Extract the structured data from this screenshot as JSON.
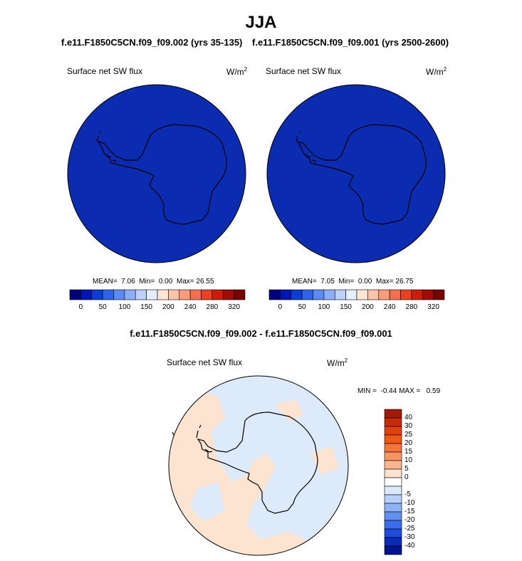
{
  "main_title": "JJA",
  "panels": [
    {
      "run_title": "f.e11.F1850C5CN.f09_f09.002 (yrs 35-135)",
      "variable": "Surface net SW flux",
      "unit_base": "W/m",
      "unit_exp": "2",
      "mean_label": "MEAN=",
      "mean": "7.06",
      "min_label": "Min=",
      "min": "0.00",
      "max_label": "Max=",
      "max": "26.55"
    },
    {
      "run_title": "f.e11.F1850C5CN.f09_f09.001 (yrs 2500-2600)",
      "variable": "Surface net SW flux",
      "unit_base": "W/m",
      "unit_exp": "2",
      "mean_label": "MEAN=",
      "mean": "7.05",
      "min_label": "Min=",
      "min": "0.00",
      "max_label": "Max=",
      "max": "26.75"
    }
  ],
  "colorbar": {
    "colors": [
      "#00007f",
      "#0016b4",
      "#0a3ed6",
      "#2e63ee",
      "#5b89f6",
      "#8cadfa",
      "#bcd2fc",
      "#e4eefd",
      "#fde6d6",
      "#fcc3a7",
      "#fb9c7a",
      "#f66f4c",
      "#ea4121",
      "#cd1d0a",
      "#a40a04",
      "#7a0000"
    ],
    "ticks": [
      "0",
      "50",
      "100",
      "150",
      "200",
      "240",
      "280",
      "320"
    ]
  },
  "diff": {
    "title": "f.e11.F1850C5CN.f09_f09.002 - f.e11.F1850C5CN.f09_f09.001",
    "variable": "Surface net SW flux",
    "unit_base": "W/m",
    "unit_exp": "2",
    "minmax_text": "MIN =  -0.44 MAX =   0.59",
    "colors_top_to_bottom": [
      "#a41a0a",
      "#c62a0c",
      "#e1400f",
      "#f2571a",
      "#f6733a",
      "#f89362",
      "#fbb68f",
      "#fde3cf",
      "#ffffff",
      "#dbe9fb",
      "#b7d0f8",
      "#8fb2f4",
      "#6290ef",
      "#3a6cec",
      "#1e4adf",
      "#0c2ab8",
      "#001290"
    ],
    "ticks": [
      "40",
      "30",
      "25",
      "20",
      "15",
      "10",
      "5",
      "0",
      "-5",
      "-10",
      "-15",
      "-20",
      "-25",
      "-30",
      "-40"
    ],
    "field_warm": "#fde4d0",
    "field_cool": "#dceaf9"
  },
  "map_fill": "#0b2cb0"
}
